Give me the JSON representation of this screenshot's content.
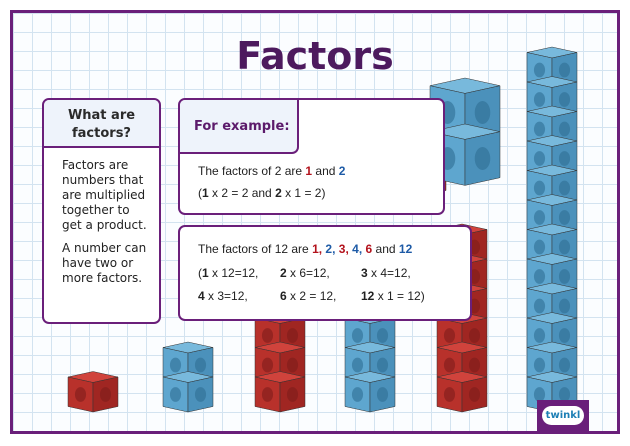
{
  "title": "Factors",
  "colors": {
    "purple": "#6a1f7a",
    "red": "#b3121c",
    "blue": "#1d5aa6",
    "grid": "#d3e3f0"
  },
  "what_box": {
    "heading": "What are factors?",
    "paragraphs": [
      "Factors are numbers that are multiplied together to get a product.",
      "A number can have two or more factors."
    ]
  },
  "example1": {
    "heading": "For example:",
    "line1": {
      "a": "The factors of 2 are ",
      "f1": "1",
      "b": " and ",
      "f2": "2"
    },
    "line2": {
      "p": "(",
      "n1": "1",
      "a": " x 2 = 2 and ",
      "n2": "2",
      "b": " x 1 = 2)"
    }
  },
  "example2": {
    "line1": {
      "a": "The factors of 12 are ",
      "f1": "1",
      "c1": ", ",
      "f2": "2",
      "c2": ", ",
      "f3": "3",
      "c3": ", ",
      "f4": "4",
      "c4": ", ",
      "f5": "6",
      "and": " and ",
      "f6": "12"
    },
    "eqs": [
      {
        "open": "(",
        "n": "1",
        "rest": " x 12=12,"
      },
      {
        "n": "2",
        "rest": " x 6=12,"
      },
      {
        "n": "3",
        "rest": " x 4=12,"
      },
      {
        "n": "4",
        "rest": " x 3=12,"
      },
      {
        "n": "6",
        "rest": " x 2 = 12,"
      },
      {
        "n": "12",
        "rest": " x 1 = 12)"
      }
    ]
  },
  "cube_stacks": [
    {
      "color": "red",
      "count": 1
    },
    {
      "color": "blue",
      "count": 2
    },
    {
      "color": "red",
      "count": 3
    },
    {
      "color": "blue",
      "count": 4
    },
    {
      "color": "red",
      "count": 6
    },
    {
      "color": "blue",
      "count": 12
    }
  ],
  "logo": "twinkl"
}
